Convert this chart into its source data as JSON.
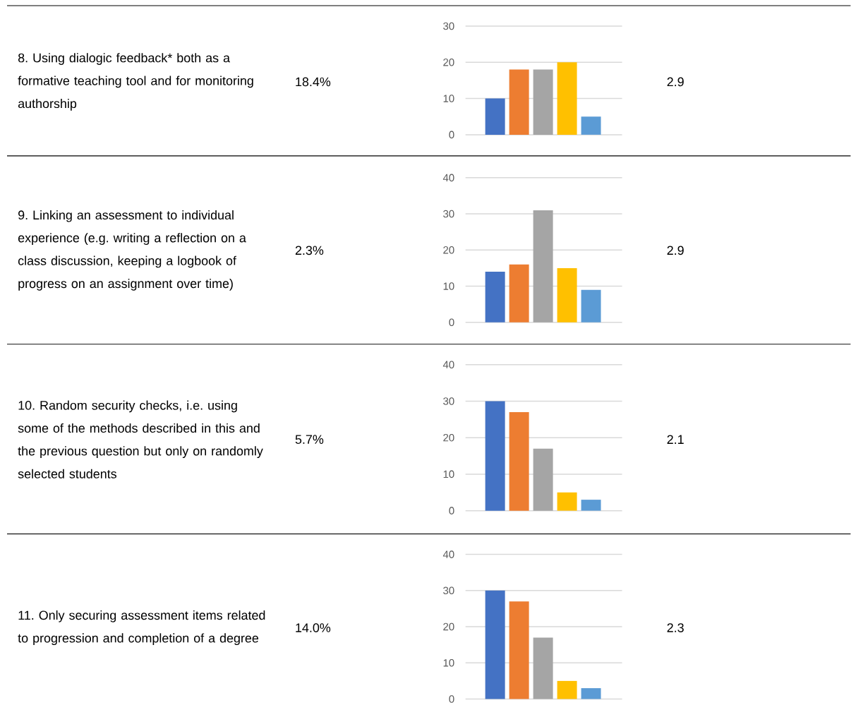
{
  "chart_data": [
    {
      "type": "bar",
      "annotations": [
        "8. Using dialogic feedback* both as a formative teaching tool and for monitoring authorship",
        "18.4%",
        "2.9"
      ],
      "categories": [
        null,
        null,
        null,
        null,
        null
      ],
      "values": [
        10,
        18,
        18,
        20,
        5
      ],
      "colors": [
        "#4472c4",
        "#ed7d31",
        "#a5a5a5",
        "#ffc000",
        "#5b9bd5"
      ],
      "ylim": [
        0,
        30
      ],
      "yticks": [
        0,
        10,
        20,
        30
      ],
      "grid": "y"
    },
    {
      "type": "bar",
      "annotations": [
        "9. Linking an assessment to individual experience (e.g. writing a reflection on a class discussion, keeping a logbook of progress on an assignment over time)",
        "2.3%",
        "2.9"
      ],
      "categories": [
        null,
        null,
        null,
        null,
        null
      ],
      "values": [
        14,
        16,
        31,
        15,
        9
      ],
      "colors": [
        "#4472c4",
        "#ed7d31",
        "#a5a5a5",
        "#ffc000",
        "#5b9bd5"
      ],
      "ylim": [
        0,
        40
      ],
      "yticks": [
        0,
        10,
        20,
        30,
        40
      ],
      "grid": "y"
    },
    {
      "type": "bar",
      "annotations": [
        "10. Random security checks, i.e. using some of the methods described in this and the previous question but only on randomly selected students",
        "5.7%",
        "2.1"
      ],
      "categories": [
        null,
        null,
        null,
        null,
        null
      ],
      "values": [
        30,
        27,
        17,
        5,
        3
      ],
      "colors": [
        "#4472c4",
        "#ed7d31",
        "#a5a5a5",
        "#ffc000",
        "#5b9bd5"
      ],
      "ylim": [
        0,
        40
      ],
      "yticks": [
        0,
        10,
        20,
        30,
        40
      ],
      "grid": "y"
    },
    {
      "type": "bar",
      "annotations": [
        "11. Only securing assessment items related to progression and completion of a degree",
        "14.0%",
        "2.3"
      ],
      "categories": [
        null,
        null,
        null,
        null,
        null
      ],
      "values": [
        30,
        27,
        17,
        5,
        3
      ],
      "colors": [
        "#4472c4",
        "#ed7d31",
        "#a5a5a5",
        "#ffc000",
        "#5b9bd5"
      ],
      "ylim": [
        0,
        40
      ],
      "yticks": [
        0,
        10,
        20,
        30,
        40
      ],
      "grid": "y"
    }
  ]
}
